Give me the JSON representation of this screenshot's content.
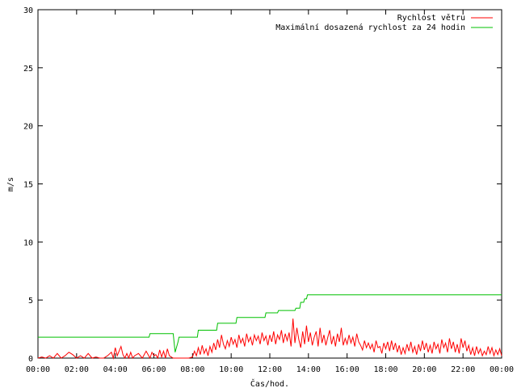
{
  "chart_data": {
    "type": "line",
    "title": "",
    "xlabel": "Čas/hod.",
    "ylabel": "m/s",
    "xlim": [
      0,
      24
    ],
    "ylim": [
      0,
      30
    ],
    "x_ticks": [
      {
        "value": 0,
        "label": "00:00"
      },
      {
        "value": 2,
        "label": "02:00"
      },
      {
        "value": 4,
        "label": "04:00"
      },
      {
        "value": 6,
        "label": "06:00"
      },
      {
        "value": 8,
        "label": "08:00"
      },
      {
        "value": 10,
        "label": "10:00"
      },
      {
        "value": 12,
        "label": "12:00"
      },
      {
        "value": 14,
        "label": "14:00"
      },
      {
        "value": 16,
        "label": "16:00"
      },
      {
        "value": 18,
        "label": "18:00"
      },
      {
        "value": 20,
        "label": "20:00"
      },
      {
        "value": 22,
        "label": "22:00"
      },
      {
        "value": 24,
        "label": "00:00"
      }
    ],
    "y_ticks": [
      0,
      5,
      10,
      15,
      20,
      25,
      30
    ],
    "grid": false,
    "legend_position": "top-right",
    "series": [
      {
        "name": "Rychlost větru",
        "color": "#ff0000",
        "points": [
          [
            0.0,
            0
          ],
          [
            0.2,
            0.1
          ],
          [
            0.4,
            0
          ],
          [
            0.6,
            0.2
          ],
          [
            0.8,
            0
          ],
          [
            1.0,
            0.4
          ],
          [
            1.2,
            0
          ],
          [
            1.4,
            0.2
          ],
          [
            1.6,
            0.5
          ],
          [
            1.8,
            0.3
          ],
          [
            2.0,
            0
          ],
          [
            2.2,
            0.2
          ],
          [
            2.4,
            0
          ],
          [
            2.6,
            0.4
          ],
          [
            2.8,
            0
          ],
          [
            3.0,
            0.1
          ],
          [
            3.2,
            0
          ],
          [
            3.4,
            0
          ],
          [
            3.6,
            0.2
          ],
          [
            3.8,
            0.5
          ],
          [
            3.9,
            0
          ],
          [
            4.0,
            0.9
          ],
          [
            4.1,
            0.2
          ],
          [
            4.2,
            0.6
          ],
          [
            4.3,
            1.0
          ],
          [
            4.4,
            0.3
          ],
          [
            4.5,
            0
          ],
          [
            4.6,
            0.4
          ],
          [
            4.7,
            0
          ],
          [
            4.8,
            0.5
          ],
          [
            4.9,
            0
          ],
          [
            5.0,
            0.2
          ],
          [
            5.2,
            0.4
          ],
          [
            5.4,
            0
          ],
          [
            5.6,
            0.6
          ],
          [
            5.8,
            0
          ],
          [
            5.9,
            0.5
          ],
          [
            6.0,
            0.2
          ],
          [
            6.1,
            0.3
          ],
          [
            6.2,
            0
          ],
          [
            6.3,
            0.7
          ],
          [
            6.4,
            0.1
          ],
          [
            6.5,
            0.6
          ],
          [
            6.6,
            0
          ],
          [
            6.7,
            0.8
          ],
          [
            6.8,
            0.2
          ],
          [
            6.9,
            0.1
          ],
          [
            7.0,
            0
          ],
          [
            7.2,
            0
          ],
          [
            7.5,
            0
          ],
          [
            7.8,
            0
          ],
          [
            8.0,
            0.1
          ],
          [
            8.1,
            0.6
          ],
          [
            8.2,
            0.2
          ],
          [
            8.3,
            0.9
          ],
          [
            8.4,
            0.3
          ],
          [
            8.5,
            1.1
          ],
          [
            8.6,
            0.4
          ],
          [
            8.7,
            0.8
          ],
          [
            8.8,
            0.2
          ],
          [
            8.9,
            1.0
          ],
          [
            9.0,
            0.5
          ],
          [
            9.1,
            1.3
          ],
          [
            9.2,
            0.7
          ],
          [
            9.3,
            1.6
          ],
          [
            9.4,
            0.9
          ],
          [
            9.5,
            2.0
          ],
          [
            9.6,
            1.2
          ],
          [
            9.7,
            0.8
          ],
          [
            9.8,
            1.5
          ],
          [
            9.9,
            1.0
          ],
          [
            10.0,
            1.8
          ],
          [
            10.1,
            1.2
          ],
          [
            10.2,
            1.6
          ],
          [
            10.3,
            0.9
          ],
          [
            10.4,
            2.0
          ],
          [
            10.5,
            1.3
          ],
          [
            10.6,
            1.7
          ],
          [
            10.7,
            1.0
          ],
          [
            10.8,
            2.1
          ],
          [
            10.9,
            1.4
          ],
          [
            11.0,
            1.8
          ],
          [
            11.1,
            1.1
          ],
          [
            11.2,
            2.0
          ],
          [
            11.3,
            1.5
          ],
          [
            11.4,
            1.9
          ],
          [
            11.5,
            1.2
          ],
          [
            11.6,
            2.2
          ],
          [
            11.7,
            1.5
          ],
          [
            11.8,
            1.9
          ],
          [
            11.9,
            1.1
          ],
          [
            12.0,
            2.0
          ],
          [
            12.1,
            1.4
          ],
          [
            12.2,
            2.3
          ],
          [
            12.3,
            1.2
          ],
          [
            12.4,
            2.0
          ],
          [
            12.5,
            1.6
          ],
          [
            12.6,
            2.4
          ],
          [
            12.7,
            1.3
          ],
          [
            12.8,
            2.1
          ],
          [
            12.9,
            1.5
          ],
          [
            13.0,
            2.2
          ],
          [
            13.1,
            1.0
          ],
          [
            13.2,
            3.4
          ],
          [
            13.3,
            1.3
          ],
          [
            13.4,
            2.6
          ],
          [
            13.5,
            1.6
          ],
          [
            13.6,
            0.9
          ],
          [
            13.7,
            2.3
          ],
          [
            13.8,
            1.2
          ],
          [
            13.9,
            2.8
          ],
          [
            14.0,
            1.4
          ],
          [
            14.1,
            2.2
          ],
          [
            14.2,
            1.1
          ],
          [
            14.3,
            1.8
          ],
          [
            14.4,
            2.3
          ],
          [
            14.5,
            1.0
          ],
          [
            14.6,
            2.6
          ],
          [
            14.7,
            1.3
          ],
          [
            14.8,
            2.0
          ],
          [
            14.9,
            1.1
          ],
          [
            15.0,
            1.8
          ],
          [
            15.1,
            2.4
          ],
          [
            15.2,
            1.2
          ],
          [
            15.3,
            1.9
          ],
          [
            15.4,
            1.0
          ],
          [
            15.5,
            2.1
          ],
          [
            15.6,
            1.4
          ],
          [
            15.7,
            2.6
          ],
          [
            15.8,
            1.1
          ],
          [
            15.9,
            1.7
          ],
          [
            16.0,
            1.2
          ],
          [
            16.1,
            2.0
          ],
          [
            16.2,
            1.3
          ],
          [
            16.3,
            1.8
          ],
          [
            16.4,
            1.0
          ],
          [
            16.5,
            2.1
          ],
          [
            16.6,
            1.4
          ],
          [
            16.7,
            1.1
          ],
          [
            16.8,
            0.7
          ],
          [
            16.9,
            1.5
          ],
          [
            17.0,
            0.9
          ],
          [
            17.1,
            1.3
          ],
          [
            17.2,
            0.8
          ],
          [
            17.3,
            1.2
          ],
          [
            17.4,
            0.5
          ],
          [
            17.5,
            1.5
          ],
          [
            17.6,
            0.9
          ],
          [
            17.7,
            1.0
          ],
          [
            17.8,
            0.4
          ],
          [
            17.9,
            1.3
          ],
          [
            18.0,
            0.8
          ],
          [
            18.1,
            1.4
          ],
          [
            18.2,
            0.6
          ],
          [
            18.3,
            1.5
          ],
          [
            18.4,
            0.7
          ],
          [
            18.5,
            1.3
          ],
          [
            18.6,
            0.5
          ],
          [
            18.7,
            1.1
          ],
          [
            18.8,
            0.3
          ],
          [
            18.9,
            0.9
          ],
          [
            19.0,
            0.4
          ],
          [
            19.1,
            1.2
          ],
          [
            19.2,
            0.6
          ],
          [
            19.3,
            1.4
          ],
          [
            19.4,
            0.5
          ],
          [
            19.5,
            1.0
          ],
          [
            19.6,
            0.3
          ],
          [
            19.7,
            1.2
          ],
          [
            19.8,
            0.6
          ],
          [
            19.9,
            1.5
          ],
          [
            20.0,
            0.7
          ],
          [
            20.1,
            1.3
          ],
          [
            20.2,
            0.5
          ],
          [
            20.3,
            1.1
          ],
          [
            20.4,
            0.4
          ],
          [
            20.5,
            1.4
          ],
          [
            20.6,
            0.8
          ],
          [
            20.7,
            1.2
          ],
          [
            20.8,
            0.4
          ],
          [
            20.9,
            1.6
          ],
          [
            21.0,
            0.9
          ],
          [
            21.1,
            1.3
          ],
          [
            21.2,
            0.5
          ],
          [
            21.3,
            1.7
          ],
          [
            21.4,
            0.8
          ],
          [
            21.5,
            1.4
          ],
          [
            21.6,
            0.5
          ],
          [
            21.7,
            1.2
          ],
          [
            21.8,
            0.4
          ],
          [
            21.9,
            1.7
          ],
          [
            22.0,
            0.9
          ],
          [
            22.1,
            1.5
          ],
          [
            22.2,
            0.6
          ],
          [
            22.3,
            1.1
          ],
          [
            22.4,
            0.3
          ],
          [
            22.5,
            0.9
          ],
          [
            22.6,
            0.2
          ],
          [
            22.7,
            1.0
          ],
          [
            22.8,
            0.4
          ],
          [
            22.9,
            0.8
          ],
          [
            23.0,
            0.2
          ],
          [
            23.1,
            0.6
          ],
          [
            23.2,
            0.3
          ],
          [
            23.3,
            1.0
          ],
          [
            23.4,
            0.4
          ],
          [
            23.5,
            0.9
          ],
          [
            23.6,
            0.2
          ],
          [
            23.7,
            0.7
          ],
          [
            23.8,
            0.3
          ],
          [
            23.9,
            0.8
          ],
          [
            24.0,
            0.2
          ]
        ]
      },
      {
        "name": "Maximální dosazená rychlost za 24 hodin",
        "color": "#00c000",
        "points": [
          [
            0.0,
            1.8
          ],
          [
            5.75,
            1.8
          ],
          [
            5.8,
            2.1
          ],
          [
            7.0,
            2.1
          ],
          [
            7.1,
            0.5
          ],
          [
            7.25,
            1.4
          ],
          [
            7.3,
            1.8
          ],
          [
            8.25,
            1.8
          ],
          [
            8.3,
            2.4
          ],
          [
            9.25,
            2.4
          ],
          [
            9.3,
            3.0
          ],
          [
            10.25,
            3.0
          ],
          [
            10.3,
            3.5
          ],
          [
            11.75,
            3.5
          ],
          [
            11.8,
            3.9
          ],
          [
            12.4,
            3.9
          ],
          [
            12.45,
            4.1
          ],
          [
            13.3,
            4.1
          ],
          [
            13.35,
            4.3
          ],
          [
            13.55,
            4.3
          ],
          [
            13.6,
            4.8
          ],
          [
            13.75,
            4.8
          ],
          [
            13.8,
            5.1
          ],
          [
            13.9,
            5.1
          ],
          [
            13.95,
            5.45
          ],
          [
            24.0,
            5.45
          ]
        ]
      }
    ]
  }
}
